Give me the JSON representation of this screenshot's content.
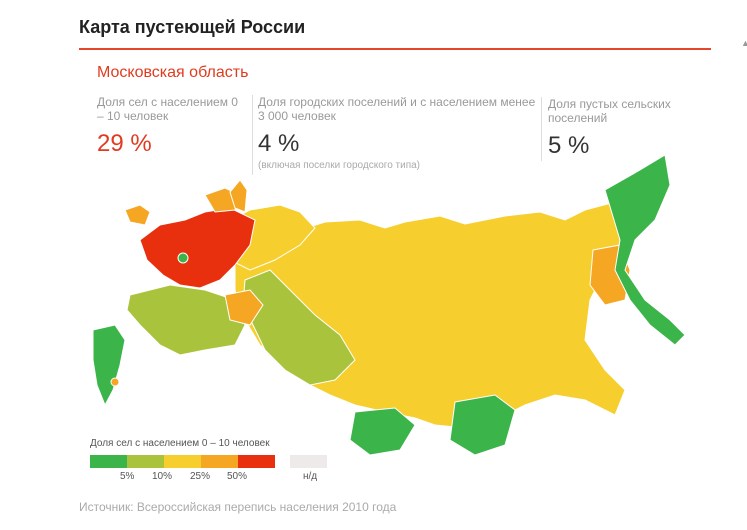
{
  "header": {
    "title": "Карта пустеющей России"
  },
  "region": {
    "name": "Московская область"
  },
  "stats": [
    {
      "label": "Доля сел с населением 0 – 10 человек",
      "value": "29 %"
    },
    {
      "label": "Доля городских поселений и с населением менее 3 000 человек",
      "value": "4 %",
      "note": "(включая поселки городского типа)"
    },
    {
      "label": "Доля пустых сельских поселений",
      "value": "5 %"
    }
  ],
  "legend": {
    "title": "Доля сел с населением 0 – 10 человек",
    "items": [
      {
        "label": "5%",
        "color": "#3bb44a"
      },
      {
        "label": "10%",
        "color": "#a9c43c"
      },
      {
        "label": "25%",
        "color": "#f6cf2e"
      },
      {
        "label": "50%",
        "color": "#f5a623"
      },
      {
        "label": "",
        "color": "#e8300f"
      },
      {
        "label": "н/д",
        "color": "#eeeaea"
      }
    ]
  },
  "source": "Источник: Всероссийская перепись населения 2010 года",
  "colors": {
    "accent": "#e6472a",
    "red": "#e8300f",
    "orange": "#f5a623",
    "yellow": "#f6cf2e",
    "olive": "#a9c43c",
    "green": "#3bb44a"
  }
}
